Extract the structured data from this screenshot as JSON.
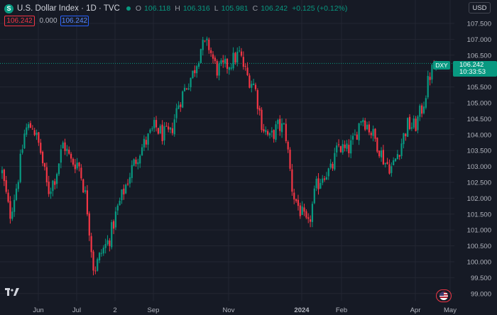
{
  "header": {
    "symbol_logo": "S",
    "title": "U.S. Dollar Index · 1D · TVC",
    "market_status_color": "#089981",
    "ohlc": [
      {
        "k": "O",
        "v": "106.118"
      },
      {
        "k": "H",
        "v": "106.316"
      },
      {
        "k": "L",
        "v": "105.981"
      },
      {
        "k": "C",
        "v": "106.242"
      }
    ],
    "change": "+0.125 (+0.12%)"
  },
  "price_boxes": {
    "sell": "106.242",
    "spread": "0.000",
    "buy": "106.242"
  },
  "currency": "USD",
  "last_price": {
    "symbol": "DXY",
    "price": "106.242",
    "countdown": "10:33:53"
  },
  "colors": {
    "up": "#089981",
    "down": "#f23645",
    "bg": "#161a25",
    "grid": "#232632",
    "axis_text": "#b2b5be"
  },
  "icons": {
    "logo": "tradingview-logo-icon",
    "flag": "us-flag-icon"
  },
  "chart_data": {
    "type": "candlestick",
    "y_ticks": [
      "107.500",
      "107.000",
      "106.500",
      "106.000",
      "105.500",
      "105.000",
      "104.500",
      "104.000",
      "103.500",
      "103.000",
      "102.500",
      "102.000",
      "101.500",
      "101.000",
      "100.500",
      "100.000",
      "99.500",
      "99.000"
    ],
    "y_range": [
      98.95,
      107.7
    ],
    "x_labels": [
      "Jun",
      "Jul",
      "2",
      "Sep",
      "Nov",
      "2024",
      "Feb",
      "Apr",
      "May"
    ],
    "x_label_positions": [
      54,
      108,
      162,
      216,
      322,
      425,
      481,
      585,
      634
    ],
    "last_value": 106.242,
    "path": [
      [
        104.3,
        101.3
      ],
      [
        101.8,
        101.1
      ],
      [
        103.5,
        101.5
      ],
      [
        104.3,
        104.0
      ],
      [
        104.7,
        103.9
      ],
      [
        103.7,
        103.3
      ],
      [
        102.3,
        102.1
      ],
      [
        103.5,
        101.9
      ],
      [
        103.9,
        103.6
      ],
      [
        103.3,
        103.0
      ],
      [
        103.4,
        102.8
      ],
      [
        103.5,
        100.4
      ],
      [
        99.8,
        99.6
      ],
      [
        100.5,
        100.1
      ],
      [
        101.0,
        100.4
      ],
      [
        101.7,
        101.5
      ],
      [
        102.2,
        102.4
      ],
      [
        103.1,
        102.8
      ],
      [
        103.7,
        103.3
      ],
      [
        104.0,
        103.7
      ],
      [
        104.3,
        104.2
      ],
      [
        104.7,
        103.3
      ],
      [
        104.2,
        103.8
      ],
      [
        105.2,
        104.7
      ],
      [
        105.8,
        105.2
      ],
      [
        106.1,
        105.8
      ],
      [
        106.6,
        106.9
      ],
      [
        107.2,
        106.4
      ],
      [
        106.2,
        105.9
      ],
      [
        105.9,
        106.3
      ],
      [
        106.6,
        106.0
      ],
      [
        106.3,
        106.8
      ],
      [
        106.2,
        105.5
      ],
      [
        105.9,
        105.2
      ],
      [
        104.5,
        104.1
      ],
      [
        103.9,
        103.8
      ],
      [
        104.0,
        104.5
      ],
      [
        104.6,
        103.8
      ],
      [
        102.5,
        101.8
      ],
      [
        101.9,
        101.3
      ],
      [
        100.9,
        101.2
      ],
      [
        102.1,
        102.5
      ],
      [
        102.9,
        102.7
      ],
      [
        103.1,
        102.6
      ],
      [
        103.8,
        103.5
      ],
      [
        103.6,
        103.3
      ],
      [
        104.2,
        103.4
      ],
      [
        104.7,
        104.5
      ],
      [
        104.2,
        104.2
      ],
      [
        103.9,
        103.6
      ],
      [
        103.5,
        102.8
      ],
      [
        103.3,
        102.6
      ],
      [
        103.7,
        103.5
      ],
      [
        104.2,
        104.4
      ],
      [
        104.1,
        104.4
      ],
      [
        105.1,
        104.7
      ],
      [
        105.8,
        106.1
      ],
      [
        106.3,
        106.2
      ]
    ]
  }
}
